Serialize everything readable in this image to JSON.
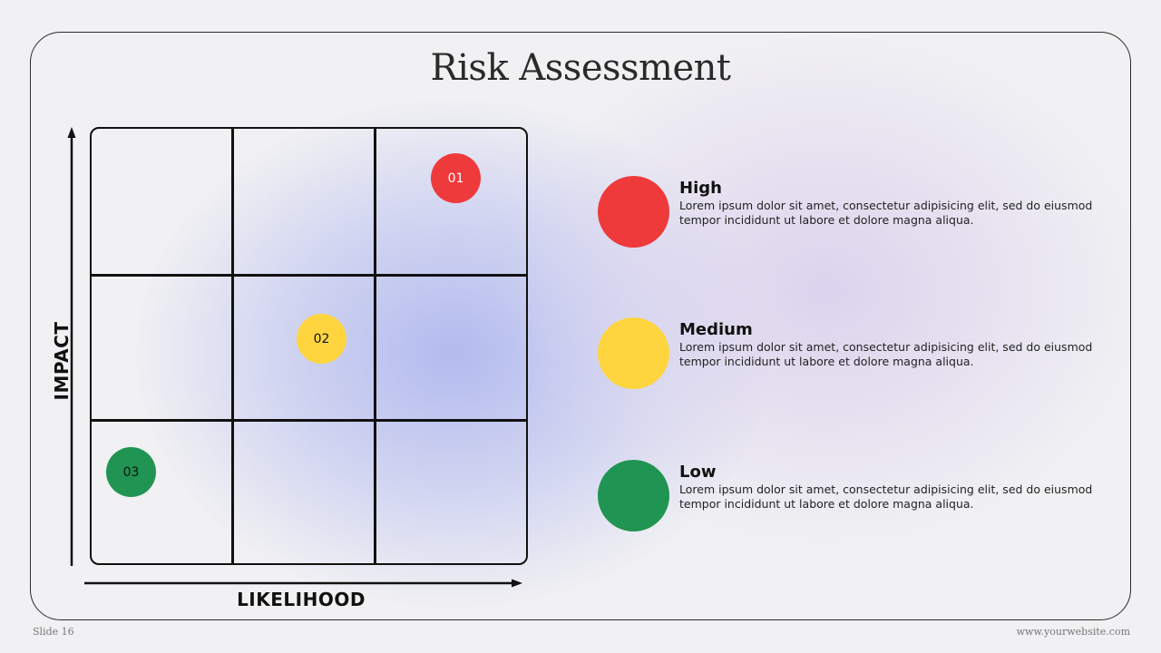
{
  "slide": {
    "title": "Risk Assessment",
    "footer_left": "Slide 16",
    "footer_right": "www.yourwebsite.com"
  },
  "matrix": {
    "y_axis_label": "IMPACT",
    "x_axis_label": "LIKELIHOOD",
    "rows": 3,
    "columns": 3,
    "markers": [
      {
        "label": "01",
        "level": "High",
        "color": "#ef3a3c",
        "text_color": "#ffffff"
      },
      {
        "label": "02",
        "level": "Medium",
        "color": "#fed53f",
        "text_color": "#111111"
      },
      {
        "label": "03",
        "level": "Low",
        "color": "#209452",
        "text_color": "#111111"
      }
    ]
  },
  "legend": {
    "items": [
      {
        "title": "High",
        "color": "#ef3a3c",
        "description": "Lorem ipsum dolor sit amet, consectetur adipisicing elit, sed do eiusmod tempor incididunt ut labore et dolore magna aliqua."
      },
      {
        "title": "Medium",
        "color": "#fed53f",
        "description": "Lorem ipsum dolor sit amet, consectetur adipisicing elit, sed do eiusmod tempor incididunt ut labore et dolore magna aliqua."
      },
      {
        "title": "Low",
        "color": "#209452",
        "description": "Lorem ipsum dolor sit amet, consectetur adipisicing elit, sed do eiusmod tempor incididunt ut labore et dolore magna aliqua."
      }
    ]
  }
}
